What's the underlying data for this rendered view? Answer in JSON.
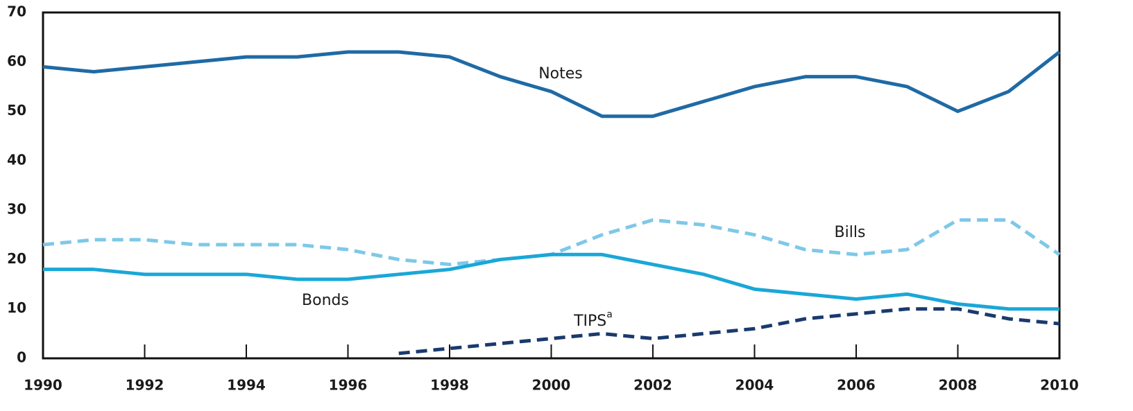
{
  "chart_data": {
    "type": "line",
    "x": [
      1990,
      1991,
      1992,
      1993,
      1994,
      1995,
      1996,
      1997,
      1998,
      1999,
      2000,
      2001,
      2002,
      2003,
      2004,
      2005,
      2006,
      2007,
      2008,
      2009,
      2010
    ],
    "series": [
      {
        "name": "Notes",
        "color": "#1f6aa5",
        "dashed": false,
        "values": [
          59,
          58,
          59,
          60,
          61,
          61,
          62,
          62,
          61,
          57,
          54,
          49,
          49,
          52,
          55,
          57,
          57,
          55,
          50,
          54,
          62
        ]
      },
      {
        "name": "Bills",
        "color": "#7ec8e8",
        "dashed": true,
        "values": [
          23,
          24,
          24,
          23,
          23,
          23,
          22,
          20,
          19,
          20,
          21,
          25,
          28,
          27,
          25,
          22,
          21,
          22,
          28,
          28,
          21
        ]
      },
      {
        "name": "Bonds",
        "color": "#1aa7d8",
        "dashed": false,
        "values": [
          18,
          18,
          17,
          17,
          17,
          16,
          16,
          17,
          18,
          20,
          21,
          21,
          19,
          17,
          14,
          13,
          12,
          13,
          11,
          10,
          10
        ]
      },
      {
        "name": "TIPS",
        "footnote_marker": "a",
        "color": "#1a3a6e",
        "dashed": true,
        "values": [
          null,
          null,
          null,
          null,
          null,
          null,
          null,
          1,
          2,
          3,
          4,
          5,
          4,
          5,
          6,
          8,
          9,
          10,
          10,
          8,
          7
        ]
      }
    ],
    "xlim": [
      1990,
      2010
    ],
    "xticks": [
      1990,
      1992,
      1994,
      1996,
      1998,
      2000,
      2002,
      2004,
      2006,
      2008,
      2010
    ],
    "ylim": [
      0,
      70
    ],
    "yticks": [
      0,
      10,
      20,
      30,
      40,
      50,
      60,
      70
    ],
    "grid": false
  }
}
